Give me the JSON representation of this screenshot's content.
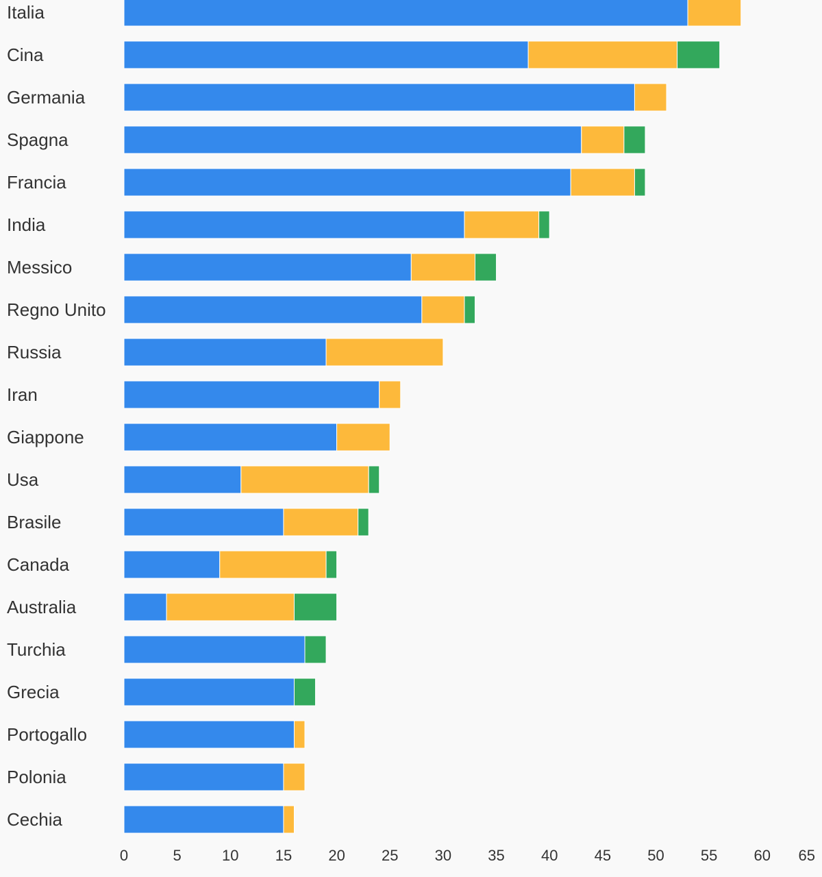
{
  "chart_data": {
    "type": "bar",
    "orientation": "horizontal",
    "stacked": true,
    "categories": [
      "Italia",
      "Cina",
      "Germania",
      "Spagna",
      "Francia",
      "India",
      "Messico",
      "Regno Unito",
      "Russia",
      "Iran",
      "Giappone",
      "Usa",
      "Brasile",
      "Canada",
      "Australia",
      "Turchia",
      "Grecia",
      "Portogallo",
      "Polonia",
      "Cechia"
    ],
    "series": [
      {
        "color": "#3489ec",
        "values": [
          53,
          38,
          48,
          43,
          42,
          32,
          27,
          28,
          19,
          24,
          20,
          11,
          15,
          9,
          4,
          17,
          16,
          16,
          15,
          15
        ]
      },
      {
        "color": "#fdb93b",
        "values": [
          5,
          14,
          3,
          4,
          6,
          7,
          6,
          4,
          11,
          2,
          5,
          12,
          7,
          10,
          12,
          0,
          0,
          1,
          2,
          1
        ]
      },
      {
        "color": "#33a85c",
        "values": [
          0,
          4,
          0,
          2,
          1,
          1,
          2,
          1,
          0,
          0,
          0,
          1,
          1,
          1,
          4,
          2,
          2,
          0,
          0,
          0
        ]
      }
    ],
    "xlim": [
      0,
      65
    ],
    "x_ticks": [
      0,
      5,
      10,
      15,
      20,
      25,
      30,
      35,
      40,
      45,
      50,
      55,
      60,
      65
    ],
    "title": "",
    "xlabel": "",
    "ylabel": "",
    "grid": false,
    "legend": "none"
  }
}
